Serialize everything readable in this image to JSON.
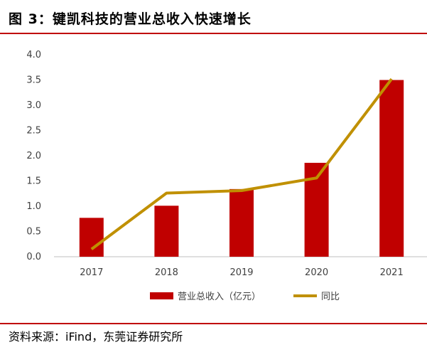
{
  "figure": {
    "title": "图 3：键凯科技的营业总收入快速增长",
    "source": "资料来源：iFind，东莞证券研究所"
  },
  "colors": {
    "bar": "#c00000",
    "line": "#c09000",
    "rule": "#c00000"
  },
  "chart_data": {
    "type": "bar",
    "categories": [
      "2017",
      "2018",
      "2019",
      "2020",
      "2021"
    ],
    "series": [
      {
        "name": "营业总收入（亿元）",
        "type": "bar",
        "values": [
          0.77,
          1.01,
          1.34,
          1.86,
          3.5
        ]
      },
      {
        "name": "同比",
        "type": "line",
        "values": [
          0.15,
          1.26,
          1.31,
          1.56,
          3.52
        ]
      }
    ],
    "ylim": [
      0,
      4
    ],
    "yticks": [
      "0.0",
      "0.5",
      "1.0",
      "1.5",
      "2.0",
      "2.5",
      "3.0",
      "3.5",
      "4.0"
    ],
    "legend": "bottom",
    "grid": false
  }
}
